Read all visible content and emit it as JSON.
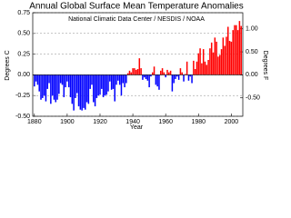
{
  "chart_data": {
    "type": "bar",
    "title": "Annual Global Surface Mean Temperature Anomalies",
    "subtitle": "National Climatic Data Center / NESDIS / NOAA",
    "x_label": "Year",
    "y_label": "Degrees C",
    "y2_label": "Degrees F",
    "x": [
      1880,
      1881,
      1882,
      1883,
      1884,
      1885,
      1886,
      1887,
      1888,
      1889,
      1890,
      1891,
      1892,
      1893,
      1894,
      1895,
      1896,
      1897,
      1898,
      1899,
      1900,
      1901,
      1902,
      1903,
      1904,
      1905,
      1906,
      1907,
      1908,
      1909,
      1910,
      1911,
      1912,
      1913,
      1914,
      1915,
      1916,
      1917,
      1918,
      1919,
      1920,
      1921,
      1922,
      1923,
      1924,
      1925,
      1926,
      1927,
      1928,
      1929,
      1930,
      1931,
      1932,
      1933,
      1934,
      1935,
      1936,
      1937,
      1938,
      1939,
      1940,
      1941,
      1942,
      1943,
      1944,
      1945,
      1946,
      1947,
      1948,
      1949,
      1950,
      1951,
      1952,
      1953,
      1954,
      1955,
      1956,
      1957,
      1958,
      1959,
      1960,
      1961,
      1962,
      1963,
      1964,
      1965,
      1966,
      1967,
      1968,
      1969,
      1970,
      1971,
      1972,
      1973,
      1974,
      1975,
      1976,
      1977,
      1978,
      1979,
      1980,
      1981,
      1982,
      1983,
      1984,
      1985,
      1986,
      1987,
      1988,
      1989,
      1990,
      1991,
      1992,
      1993,
      1994,
      1995,
      1996,
      1997,
      1998,
      1999,
      2000,
      2001,
      2002,
      2003,
      2004,
      2005,
      2006
    ],
    "values": [
      -0.14,
      -0.08,
      -0.12,
      -0.2,
      -0.3,
      -0.28,
      -0.25,
      -0.32,
      -0.17,
      -0.1,
      -0.35,
      -0.25,
      -0.3,
      -0.33,
      -0.3,
      -0.23,
      -0.1,
      -0.12,
      -0.27,
      -0.15,
      -0.08,
      -0.15,
      -0.27,
      -0.35,
      -0.43,
      -0.28,
      -0.22,
      -0.38,
      -0.42,
      -0.43,
      -0.4,
      -0.42,
      -0.33,
      -0.35,
      -0.17,
      -0.12,
      -0.33,
      -0.38,
      -0.28,
      -0.25,
      -0.24,
      -0.17,
      -0.27,
      -0.25,
      -0.24,
      -0.2,
      -0.08,
      -0.18,
      -0.17,
      -0.32,
      -0.12,
      -0.07,
      -0.12,
      -0.25,
      -0.1,
      -0.15,
      -0.1,
      0.02,
      0.05,
      0.03,
      0.08,
      0.08,
      0.06,
      0.07,
      0.2,
      0.08,
      -0.06,
      -0.03,
      -0.05,
      -0.07,
      -0.15,
      -0.02,
      0.03,
      0.1,
      -0.12,
      -0.14,
      -0.18,
      0.05,
      0.08,
      0.03,
      -0.03,
      0.06,
      0.03,
      0.05,
      -0.2,
      -0.1,
      -0.05,
      -0.02,
      -0.06,
      0.08,
      0.03,
      -0.08,
      0.01,
      0.16,
      -0.07,
      -0.02,
      -0.1,
      0.17,
      0.07,
      0.16,
      0.26,
      0.32,
      0.14,
      0.31,
      0.16,
      0.12,
      0.18,
      0.32,
      0.39,
      0.27,
      0.45,
      0.4,
      0.22,
      0.24,
      0.31,
      0.45,
      0.35,
      0.46,
      0.58,
      0.41,
      0.4,
      0.54,
      0.6,
      0.6,
      0.54,
      0.65,
      0.59
    ],
    "positive_color": "#ff0000",
    "negative_color": "#0000ff",
    "xlim": [
      1879,
      2007
    ],
    "xticks": [
      1880,
      1900,
      1920,
      1940,
      1960,
      1980,
      2000
    ],
    "ylim": [
      -0.5,
      0.75
    ],
    "yticks": [
      {
        "value": -0.5,
        "label": "-0.50"
      },
      -0.25,
      {
        "value": 0,
        "label": "0.00"
      },
      0.25,
      {
        "value": 0.5,
        "label": "0.50"
      },
      0.75
    ],
    "y2lim": [
      -0.9,
      1.35
    ],
    "y2ticks": [
      {
        "value": -0.5,
        "label": "-0.50"
      },
      {
        "value": 0,
        "label": "0.00"
      },
      {
        "value": 0.5,
        "label": "0.50"
      },
      {
        "value": 1,
        "label": "1.00"
      }
    ],
    "grid": true
  }
}
